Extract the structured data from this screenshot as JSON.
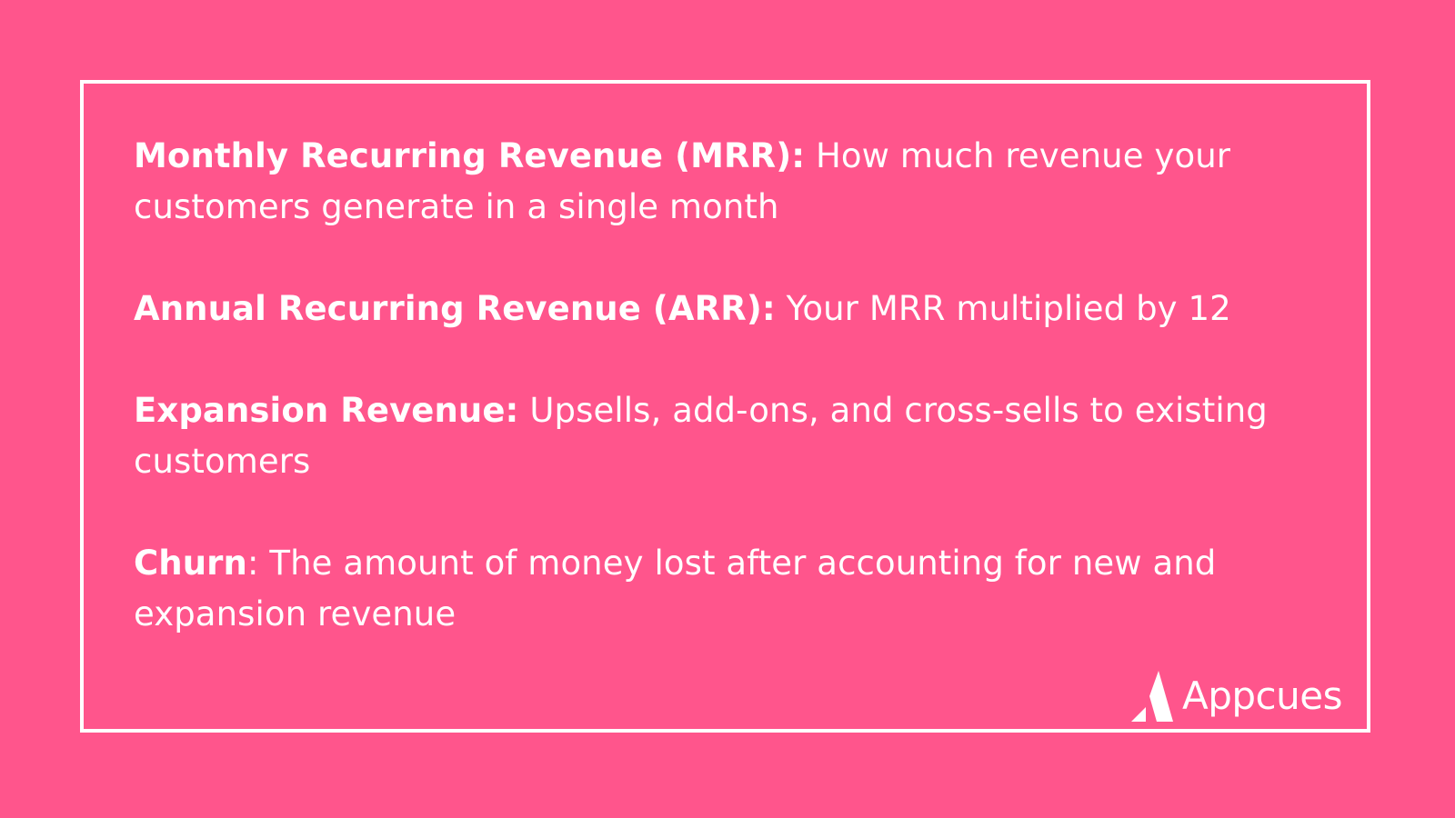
{
  "definitions": [
    {
      "term": "Monthly Recurring Revenue (MRR):",
      "separator": " ",
      "description": "How much revenue your customers generate in a single month"
    },
    {
      "term": "Annual Recurring Revenue (ARR):",
      "separator": " ",
      "description": "Your MRR multiplied by 12"
    },
    {
      "term": "Expansion Revenue:",
      "separator": " ",
      "description": "Upsells, add-ons, and cross-sells to existing customers"
    },
    {
      "term": "Churn",
      "separator": ": ",
      "description": "The amount of money lost after accounting for new and expansion revenue"
    }
  ],
  "brand": {
    "name": "Appcues",
    "icon": "appcues-logo-icon"
  },
  "colors": {
    "background": "#ff558c",
    "foreground": "#ffffff"
  }
}
